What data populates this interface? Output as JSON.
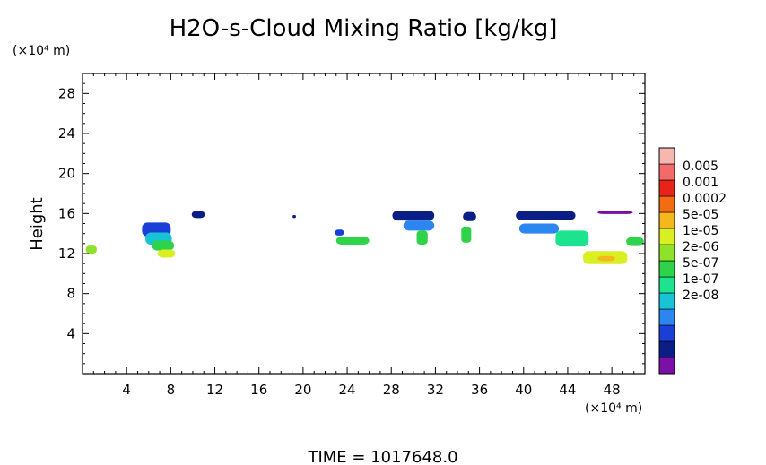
{
  "chart_data": {
    "type": "heatmap",
    "title": "H2O-s-Cloud Mixing Ratio [kg/kg]",
    "ylabel": "Height",
    "x_unit": "(×10⁴ m)",
    "y_unit": "(×10⁴ m)",
    "xlim": [
      0,
      51
    ],
    "ylim": [
      0,
      30
    ],
    "x_ticks": [
      4,
      8,
      12,
      16,
      20,
      24,
      28,
      32,
      36,
      40,
      44,
      48
    ],
    "y_ticks": [
      4,
      8,
      12,
      16,
      20,
      24,
      28
    ],
    "x_tick_labels": [
      "4",
      "8",
      "12",
      "16",
      "20",
      "24",
      "28",
      "32",
      "36",
      "40",
      "44",
      "48"
    ],
    "y_tick_labels": [
      "4",
      "8",
      "12",
      "16",
      "20",
      "24",
      "28"
    ],
    "colorbar": {
      "labels": [
        "0.005",
        "0.001",
        "0.0002",
        "5e-05",
        "1e-05",
        "2e-06",
        "5e-07",
        "1e-07",
        "2e-08"
      ],
      "colors": [
        "#7a10a6",
        "#0b1e86",
        "#1a3fd6",
        "#2b86f0",
        "#18c3d6",
        "#1de28e",
        "#2fd34a",
        "#8fe22a",
        "#d9ef22",
        "#f4b81c",
        "#f36c12",
        "#e8241a",
        "#f36a6a",
        "#f6b7b0"
      ]
    },
    "cells": [
      {
        "x": 0.8,
        "y": 12.4,
        "w": 1.0,
        "h": 0.8,
        "level": 7
      },
      {
        "x": 6.7,
        "y": 14.4,
        "w": 2.6,
        "h": 1.4,
        "level": 2
      },
      {
        "x": 6.9,
        "y": 13.5,
        "w": 2.4,
        "h": 1.2,
        "level": 4
      },
      {
        "x": 7.3,
        "y": 12.8,
        "w": 2.0,
        "h": 1.0,
        "level": 6
      },
      {
        "x": 7.6,
        "y": 12.0,
        "w": 1.6,
        "h": 0.8,
        "level": 8
      },
      {
        "x": 10.5,
        "y": 15.9,
        "w": 1.2,
        "h": 0.7,
        "level": 1
      },
      {
        "x": 19.2,
        "y": 15.7,
        "w": 0.3,
        "h": 0.3,
        "level": 1
      },
      {
        "x": 23.3,
        "y": 14.1,
        "w": 0.8,
        "h": 0.6,
        "level": 2
      },
      {
        "x": 24.5,
        "y": 13.3,
        "w": 3.0,
        "h": 0.8,
        "level": 6
      },
      {
        "x": 30.0,
        "y": 15.8,
        "w": 3.8,
        "h": 1.0,
        "level": 1
      },
      {
        "x": 30.5,
        "y": 14.8,
        "w": 2.8,
        "h": 1.0,
        "level": 3
      },
      {
        "x": 30.8,
        "y": 13.6,
        "w": 1.0,
        "h": 1.4,
        "level": 6
      },
      {
        "x": 35.1,
        "y": 15.7,
        "w": 1.2,
        "h": 0.9,
        "level": 1
      },
      {
        "x": 34.8,
        "y": 13.9,
        "w": 0.9,
        "h": 1.6,
        "level": 6
      },
      {
        "x": 42.0,
        "y": 15.8,
        "w": 5.4,
        "h": 0.9,
        "level": 1
      },
      {
        "x": 41.4,
        "y": 14.5,
        "w": 3.6,
        "h": 1.0,
        "level": 3
      },
      {
        "x": 44.4,
        "y": 13.5,
        "w": 3.0,
        "h": 1.6,
        "level": 5
      },
      {
        "x": 47.4,
        "y": 11.6,
        "w": 4.0,
        "h": 1.3,
        "level": 8
      },
      {
        "x": 47.5,
        "y": 11.5,
        "w": 1.6,
        "h": 0.5,
        "level": 9
      },
      {
        "x": 50.1,
        "y": 13.2,
        "w": 1.6,
        "h": 0.9,
        "level": 6
      },
      {
        "x": 48.3,
        "y": 16.1,
        "w": 3.2,
        "h": 0.3,
        "level": 0
      }
    ],
    "footer": "TIME = 1017648.0"
  }
}
